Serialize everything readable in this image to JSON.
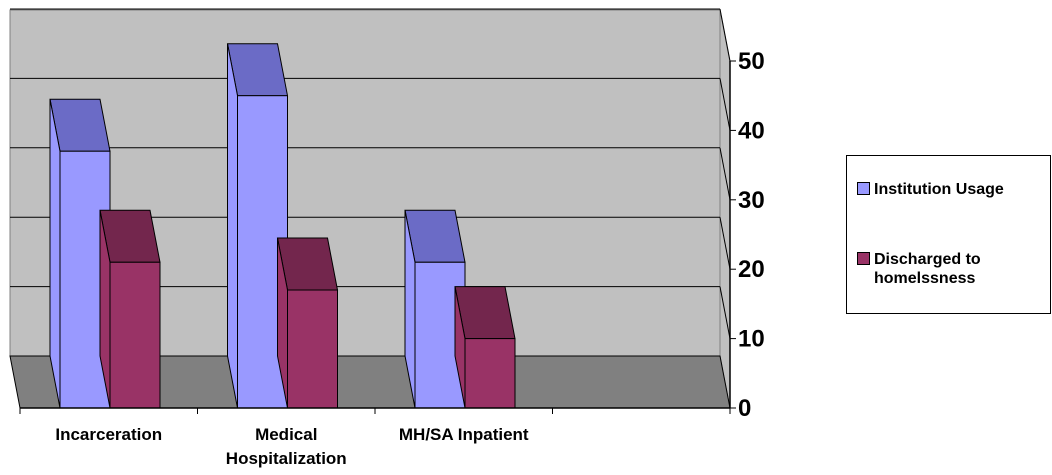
{
  "chart_data": {
    "type": "bar",
    "style": "3d-clustered-column",
    "categories": [
      "Incarceration",
      "Medical\nHospitalization",
      "MH/SA Inpatient"
    ],
    "series": [
      {
        "name": "Institution Usage",
        "values": [
          37,
          45,
          21
        ],
        "color": "#9999ff",
        "top_color": "#6b6bc6"
      },
      {
        "name": "Discharged to homelssness",
        "values": [
          21,
          17,
          10
        ],
        "color": "#993366",
        "top_color": "#73264d"
      }
    ],
    "ylim": [
      0,
      50
    ],
    "yticks": [
      "0",
      "10",
      "20",
      "30",
      "40",
      "50"
    ],
    "y_axis_side": "right",
    "grid": true,
    "wall_color": "#c0c0c0",
    "floor_color": "#808080",
    "legend_placement": "right"
  },
  "legend": {
    "items": [
      {
        "label": "Institution Usage",
        "color": "#9999ff"
      },
      {
        "label": "Discharged to\nhomelssness",
        "color": "#993366"
      }
    ]
  }
}
